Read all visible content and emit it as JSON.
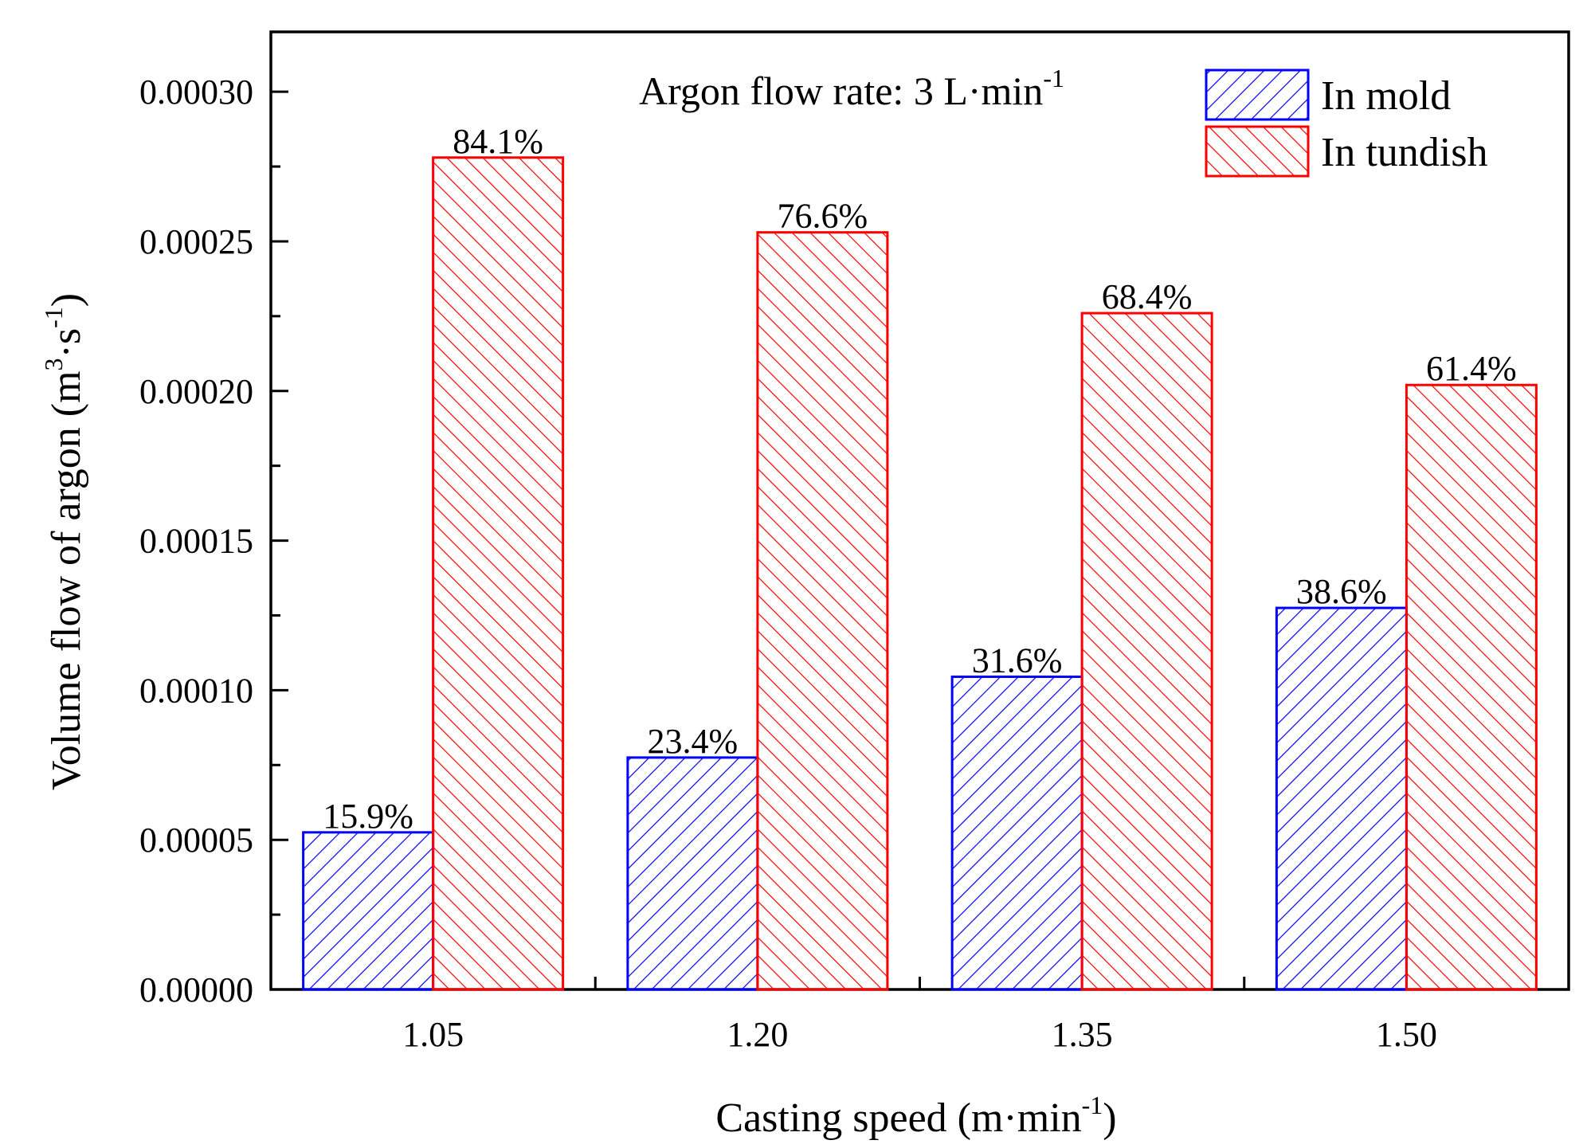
{
  "chart_data": {
    "type": "bar",
    "title": "",
    "annotation": {
      "main": "Argon flow rate: 3 L·min",
      "sup": "-1"
    },
    "xlabel": {
      "main": "Casting speed (m·min",
      "sup": "-1",
      "end": ")"
    },
    "ylabel": {
      "p1": "Volume flow of argon (m",
      "sup1": "3",
      "p2": "·s",
      "sup2": "-1",
      "p3": ")"
    },
    "categories": [
      "1.05",
      "1.20",
      "1.35",
      "1.50"
    ],
    "ylim": [
      0,
      0.00032
    ],
    "yticks": [
      "0.00000",
      "0.00005",
      "0.00010",
      "0.00015",
      "0.00020",
      "0.00025",
      "0.00030"
    ],
    "ytick_values": [
      0,
      5e-05,
      0.0001,
      0.00015,
      0.0002,
      0.00025,
      0.0003
    ],
    "series": [
      {
        "name": "In mold",
        "color": "#0000ff",
        "hatch": "forward",
        "values": [
          5.25e-05,
          7.75e-05,
          0.0001045,
          0.0001275
        ],
        "labels": [
          "15.9%",
          "23.4%",
          "31.6%",
          "38.6%"
        ]
      },
      {
        "name": "In tundish",
        "color": "#ff0000",
        "hatch": "backward",
        "values": [
          0.000278,
          0.000253,
          0.000226,
          0.000202
        ],
        "labels": [
          "84.1%",
          "76.6%",
          "68.4%",
          "61.4%"
        ]
      }
    ],
    "legend_position": "top-right"
  }
}
